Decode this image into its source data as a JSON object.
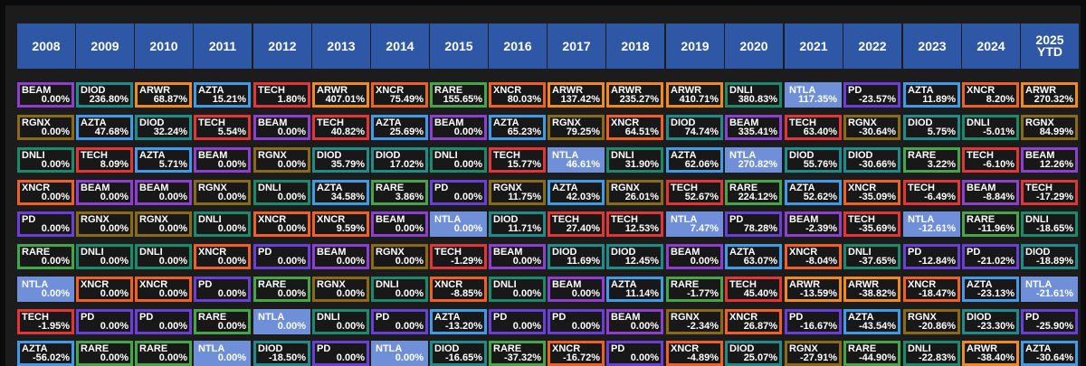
{
  "headers": [
    "2008",
    "2009",
    "2010",
    "2011",
    "2012",
    "2013",
    "2014",
    "2015",
    "2016",
    "2017",
    "2018",
    "2019",
    "2020",
    "2021",
    "2022",
    "2023",
    "2024",
    "2025\nYTD"
  ],
  "colors": {
    "BEAM": "#8e3fd0",
    "DIOD": "#1f8c8c",
    "ARWR": "#f08a1c",
    "AZTA": "#3d9be8",
    "TECH": "#e23535",
    "XNCR": "#f06020",
    "RARE": "#46a548",
    "DNLI": "#1a8a6a",
    "NTLA": "#6f8fd8",
    "PD": "#6a3fd8",
    "RGNX": "#8a6a12"
  },
  "columns": [
    [
      [
        "BEAM",
        "0.00%"
      ],
      [
        "RGNX",
        "0.00%"
      ],
      [
        "DNLI",
        "0.00%"
      ],
      [
        "XNCR",
        "0.00%"
      ],
      [
        "PD",
        "0.00%"
      ],
      [
        "RARE",
        "0.00%"
      ],
      [
        "NTLA",
        "0.00%"
      ],
      [
        "TECH",
        "-1.95%"
      ],
      [
        "AZTA",
        "-56.02%"
      ]
    ],
    [
      [
        "DIOD",
        "236.80%"
      ],
      [
        "AZTA",
        "47.68%"
      ],
      [
        "TECH",
        "8.09%"
      ],
      [
        "BEAM",
        "0.00%"
      ],
      [
        "RGNX",
        "0.00%"
      ],
      [
        "DNLI",
        "0.00%"
      ],
      [
        "XNCR",
        "0.00%"
      ],
      [
        "PD",
        "0.00%"
      ],
      [
        "RARE",
        "0.00%"
      ]
    ],
    [
      [
        "ARWR",
        "68.87%"
      ],
      [
        "DIOD",
        "32.24%"
      ],
      [
        "AZTA",
        "5.71%"
      ],
      [
        "BEAM",
        "0.00%"
      ],
      [
        "RGNX",
        "0.00%"
      ],
      [
        "DNLI",
        "0.00%"
      ],
      [
        "XNCR",
        "0.00%"
      ],
      [
        "PD",
        "0.00%"
      ],
      [
        "RARE",
        "0.00%"
      ]
    ],
    [
      [
        "AZTA",
        "15.21%"
      ],
      [
        "TECH",
        "5.54%"
      ],
      [
        "BEAM",
        "0.00%"
      ],
      [
        "RGNX",
        "0.00%"
      ],
      [
        "DNLI",
        "0.00%"
      ],
      [
        "XNCR",
        "0.00%"
      ],
      [
        "PD",
        "0.00%"
      ],
      [
        "RARE",
        "0.00%"
      ],
      [
        "NTLA",
        "0.00%"
      ]
    ],
    [
      [
        "TECH",
        "1.80%"
      ],
      [
        "BEAM",
        "0.00%"
      ],
      [
        "RGNX",
        "0.00%"
      ],
      [
        "DNLI",
        "0.00%"
      ],
      [
        "XNCR",
        "0.00%"
      ],
      [
        "PD",
        "0.00%"
      ],
      [
        "RARE",
        "0.00%"
      ],
      [
        "NTLA",
        "0.00%"
      ],
      [
        "DIOD",
        "-18.50%"
      ]
    ],
    [
      [
        "ARWR",
        "407.01%"
      ],
      [
        "TECH",
        "40.82%"
      ],
      [
        "DIOD",
        "35.79%"
      ],
      [
        "AZTA",
        "34.58%"
      ],
      [
        "XNCR",
        "9.59%"
      ],
      [
        "BEAM",
        "0.00%"
      ],
      [
        "RGNX",
        "0.00%"
      ],
      [
        "DNLI",
        "0.00%"
      ],
      [
        "PD",
        "0.00%"
      ]
    ],
    [
      [
        "XNCR",
        "75.49%"
      ],
      [
        "AZTA",
        "25.69%"
      ],
      [
        "DIOD",
        "17.02%"
      ],
      [
        "RARE",
        "3.86%"
      ],
      [
        "BEAM",
        "0.00%"
      ],
      [
        "RGNX",
        "0.00%"
      ],
      [
        "DNLI",
        "0.00%"
      ],
      [
        "PD",
        "0.00%"
      ],
      [
        "NTLA",
        "0.00%"
      ]
    ],
    [
      [
        "RARE",
        "155.65%"
      ],
      [
        "BEAM",
        "0.00%"
      ],
      [
        "DNLI",
        "0.00%"
      ],
      [
        "PD",
        "0.00%"
      ],
      [
        "NTLA",
        "0.00%"
      ],
      [
        "TECH",
        "-1.29%"
      ],
      [
        "XNCR",
        "-8.85%"
      ],
      [
        "AZTA",
        "-13.20%"
      ],
      [
        "DIOD",
        "-16.65%"
      ]
    ],
    [
      [
        "XNCR",
        "80.03%"
      ],
      [
        "AZTA",
        "65.23%"
      ],
      [
        "TECH",
        "15.77%"
      ],
      [
        "RGNX",
        "11.75%"
      ],
      [
        "DIOD",
        "11.71%"
      ],
      [
        "BEAM",
        "0.00%"
      ],
      [
        "DNLI",
        "0.00%"
      ],
      [
        "PD",
        "0.00%"
      ],
      [
        "RARE",
        "-37.32%"
      ]
    ],
    [
      [
        "ARWR",
        "137.42%"
      ],
      [
        "RGNX",
        "79.25%"
      ],
      [
        "NTLA",
        "46.61%"
      ],
      [
        "AZTA",
        "42.03%"
      ],
      [
        "TECH",
        "27.40%"
      ],
      [
        "DIOD",
        "11.69%"
      ],
      [
        "BEAM",
        "0.00%"
      ],
      [
        "PD",
        "0.00%"
      ],
      [
        "XNCR",
        "-16.72%"
      ]
    ],
    [
      [
        "ARWR",
        "235.27%"
      ],
      [
        "XNCR",
        "64.51%"
      ],
      [
        "DNLI",
        "31.90%"
      ],
      [
        "RGNX",
        "26.01%"
      ],
      [
        "TECH",
        "12.53%"
      ],
      [
        "DIOD",
        "12.45%"
      ],
      [
        "AZTA",
        "11.14%"
      ],
      [
        "BEAM",
        "0.00%"
      ],
      [
        "PD",
        "0.00%"
      ]
    ],
    [
      [
        "ARWR",
        "410.71%"
      ],
      [
        "DIOD",
        "74.74%"
      ],
      [
        "AZTA",
        "62.06%"
      ],
      [
        "TECH",
        "52.67%"
      ],
      [
        "NTLA",
        "7.47%"
      ],
      [
        "BEAM",
        "0.00%"
      ],
      [
        "RARE",
        "-1.77%"
      ],
      [
        "RGNX",
        "-2.34%"
      ],
      [
        "XNCR",
        "-4.89%"
      ]
    ],
    [
      [
        "DNLI",
        "380.83%"
      ],
      [
        "BEAM",
        "335.41%"
      ],
      [
        "NTLA",
        "270.82%"
      ],
      [
        "RARE",
        "224.12%"
      ],
      [
        "PD",
        "78.28%"
      ],
      [
        "AZTA",
        "63.07%"
      ],
      [
        "TECH",
        "45.40%"
      ],
      [
        "XNCR",
        "26.87%"
      ],
      [
        "DIOD",
        "25.07%"
      ]
    ],
    [
      [
        "NTLA",
        "117.35%"
      ],
      [
        "TECH",
        "63.40%"
      ],
      [
        "DIOD",
        "55.76%"
      ],
      [
        "AZTA",
        "52.62%"
      ],
      [
        "BEAM",
        "-2.39%"
      ],
      [
        "XNCR",
        "-8.04%"
      ],
      [
        "ARWR",
        "-13.59%"
      ],
      [
        "PD",
        "-16.67%"
      ],
      [
        "RGNX",
        "-27.91%"
      ]
    ],
    [
      [
        "PD",
        "-23.57%"
      ],
      [
        "RGNX",
        "-30.64%"
      ],
      [
        "DIOD",
        "-30.66%"
      ],
      [
        "XNCR",
        "-35.09%"
      ],
      [
        "TECH",
        "-35.69%"
      ],
      [
        "DNLI",
        "-37.65%"
      ],
      [
        "ARWR",
        "-38.82%"
      ],
      [
        "AZTA",
        "-43.54%"
      ],
      [
        "RARE",
        "-44.90%"
      ]
    ],
    [
      [
        "AZTA",
        "11.89%"
      ],
      [
        "DIOD",
        "5.75%"
      ],
      [
        "RARE",
        "3.22%"
      ],
      [
        "TECH",
        "-6.49%"
      ],
      [
        "NTLA",
        "-12.61%"
      ],
      [
        "PD",
        "-12.84%"
      ],
      [
        "XNCR",
        "-18.47%"
      ],
      [
        "RGNX",
        "-20.86%"
      ],
      [
        "DNLI",
        "-22.83%"
      ]
    ],
    [
      [
        "XNCR",
        "8.20%"
      ],
      [
        "DNLI",
        "-5.01%"
      ],
      [
        "TECH",
        "-6.10%"
      ],
      [
        "BEAM",
        "-8.84%"
      ],
      [
        "RARE",
        "-11.96%"
      ],
      [
        "PD",
        "-21.02%"
      ],
      [
        "AZTA",
        "-23.13%"
      ],
      [
        "DIOD",
        "-23.30%"
      ],
      [
        "ARWR",
        "-38.40%"
      ]
    ],
    [
      [
        "ARWR",
        "270.32%"
      ],
      [
        "RGNX",
        "84.99%"
      ],
      [
        "BEAM",
        "12.26%"
      ],
      [
        "TECH",
        "-17.29%"
      ],
      [
        "DNLI",
        "-18.65%"
      ],
      [
        "DIOD",
        "-18.89%"
      ],
      [
        "NTLA",
        "-21.61%"
      ],
      [
        "PD",
        "-25.90%"
      ],
      [
        "AZTA",
        "-30.64%"
      ]
    ]
  ]
}
